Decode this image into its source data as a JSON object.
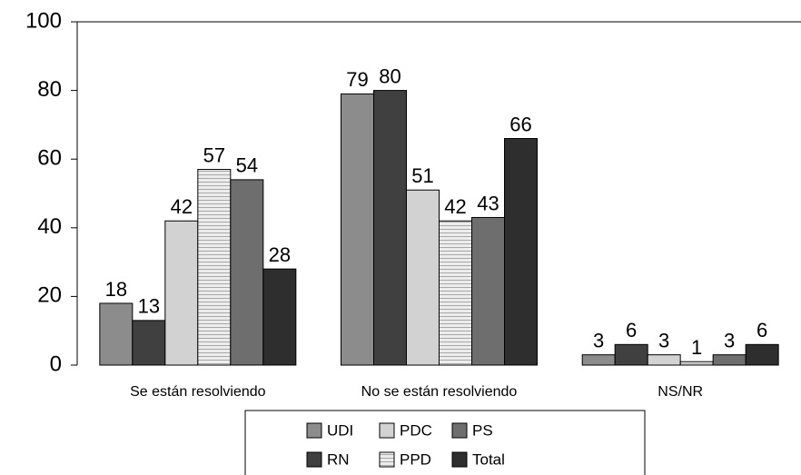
{
  "chart_data": {
    "type": "bar",
    "categories": [
      "Se están resolviendo",
      "No se están resolviendo",
      "NS/NR"
    ],
    "series": [
      {
        "name": "UDI",
        "color": "#8c8c8c",
        "values": [
          18,
          79,
          3
        ]
      },
      {
        "name": "RN",
        "color": "#404040",
        "values": [
          13,
          80,
          6
        ]
      },
      {
        "name": "PDC",
        "color": "#d2d2d2",
        "values": [
          42,
          51,
          3
        ]
      },
      {
        "name": "PPD",
        "color": "#e6e6e6",
        "pattern": "horizontal-lines",
        "values": [
          57,
          42,
          1
        ]
      },
      {
        "name": "PS",
        "color": "#6e6e6e",
        "values": [
          54,
          43,
          3
        ]
      },
      {
        "name": "Total",
        "color": "#2e2e2e",
        "values": [
          28,
          66,
          6
        ]
      }
    ],
    "ylim": [
      0,
      100
    ],
    "yticks": [
      0,
      20,
      40,
      60,
      80,
      100
    ],
    "legend": "bottom"
  }
}
